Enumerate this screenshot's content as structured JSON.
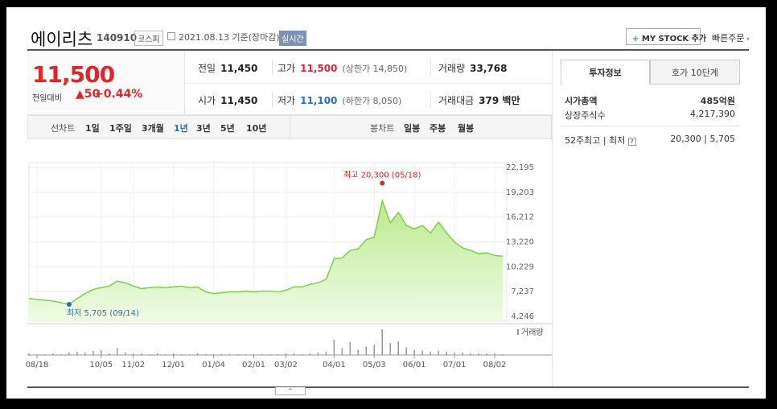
{
  "header": {
    "name": "에이리츠",
    "code": "140910",
    "market": "코스피",
    "date": "2021.08.13 기준(장마감)",
    "realtime": "실시간",
    "my_stock": "MY STOCK 추가",
    "quick_order": "빠른주문"
  },
  "price": {
    "current": "11,500",
    "change_label": "전일대비",
    "change": "50",
    "change_rate": "+0.44%"
  },
  "summary": {
    "rows": [
      [
        {
          "label": "전일",
          "value": "11,450"
        },
        {
          "label": "고가",
          "value": "11,500",
          "note": "(상한가 14,850)"
        },
        {
          "label": "거래량",
          "value": "33,768"
        }
      ],
      [
        {
          "label": "시가",
          "value": "11,450"
        },
        {
          "label": "저가",
          "value": "11,100",
          "note": "(하한가 8,050)"
        },
        {
          "label": "거래대금",
          "value": "379 백만"
        }
      ]
    ]
  },
  "tabs": {
    "line_label": "선차트",
    "line": [
      "1일",
      "1주일",
      "3개월",
      "1년",
      "3년",
      "5년",
      "10년"
    ],
    "candle_label": "봉차트",
    "candle": [
      "일봉",
      "주봉",
      "월봉"
    ]
  },
  "chart_data": {
    "type": "area",
    "color": "#7fcf4a",
    "categories": [
      null,
      "08/18",
      null,
      null,
      null,
      null,
      null,
      null,
      null,
      "10/05",
      null,
      null,
      null,
      "11/02",
      null,
      null,
      null,
      null,
      "12/01",
      null,
      null,
      null,
      null,
      "01/04",
      null,
      null,
      null,
      null,
      "02/01",
      null,
      null,
      null,
      "03/02",
      null,
      null,
      null,
      null,
      null,
      "04/01",
      null,
      null,
      null,
      null,
      "05/03",
      null,
      null,
      null,
      null,
      "06/01",
      null,
      null,
      null,
      null,
      "07/01",
      null,
      null,
      null,
      null,
      "08/02",
      null
    ],
    "values": [
      6400,
      6300,
      6200,
      6100,
      5900,
      5705,
      6400,
      7000,
      7500,
      7700,
      7900,
      8500,
      8300,
      7900,
      7600,
      7700,
      7800,
      7700,
      7800,
      7900,
      7700,
      7800,
      7200,
      7000,
      7100,
      7200,
      7200,
      7300,
      7200,
      7300,
      7300,
      7200,
      7400,
      7800,
      7800,
      8100,
      8300,
      8700,
      11200,
      11300,
      12200,
      12400,
      13500,
      13800,
      18200,
      15500,
      16800,
      15200,
      14800,
      15200,
      14300,
      15600,
      14300,
      13200,
      12500,
      12200,
      11800,
      11900,
      11600,
      11500
    ],
    "ylim": [
      4246,
      22195
    ],
    "yticks": [
      {
        "value": 22195,
        "label": "22,195"
      },
      {
        "value": 19203,
        "label": "19,203"
      },
      {
        "value": 16212,
        "label": "16,212"
      },
      {
        "value": 13220,
        "label": "13,220"
      },
      {
        "value": 10229,
        "label": "10,229"
      },
      {
        "value": 7237,
        "label": "7,237"
      },
      {
        "value": 4246,
        "label": "4,246"
      }
    ],
    "grid": true,
    "annotations": {
      "high": {
        "value": 20300,
        "label": "최고 20,300 (05/18)",
        "color": "#e0262b"
      },
      "low": {
        "value": 5705,
        "label": "최저 5,705 (09/14)",
        "color": "#2a6fb6"
      }
    },
    "volume": {
      "name": "거래량",
      "color": "#9b8ccf",
      "values": [
        2,
        1,
        1,
        2,
        1,
        3,
        4,
        3,
        5,
        6,
        2,
        8,
        3,
        2,
        2,
        1,
        2,
        1,
        2,
        1,
        1,
        2,
        1,
        1,
        1,
        1,
        1,
        1,
        1,
        1,
        1,
        1,
        2,
        2,
        1,
        2,
        3,
        4,
        18,
        8,
        15,
        6,
        10,
        12,
        30,
        14,
        16,
        9,
        6,
        5,
        4,
        5,
        4,
        3,
        3,
        2,
        2,
        2,
        2,
        1
      ]
    }
  },
  "side": {
    "tabs": [
      "투자정보",
      "호가 10단계"
    ],
    "rows": [
      {
        "label": "시가총액",
        "value": "485억원"
      },
      {
        "label": "상장주식수",
        "value": "4,217,390"
      },
      {
        "label": "52주최고 | 최저",
        "value": "20,300 | 5,705"
      }
    ]
  }
}
